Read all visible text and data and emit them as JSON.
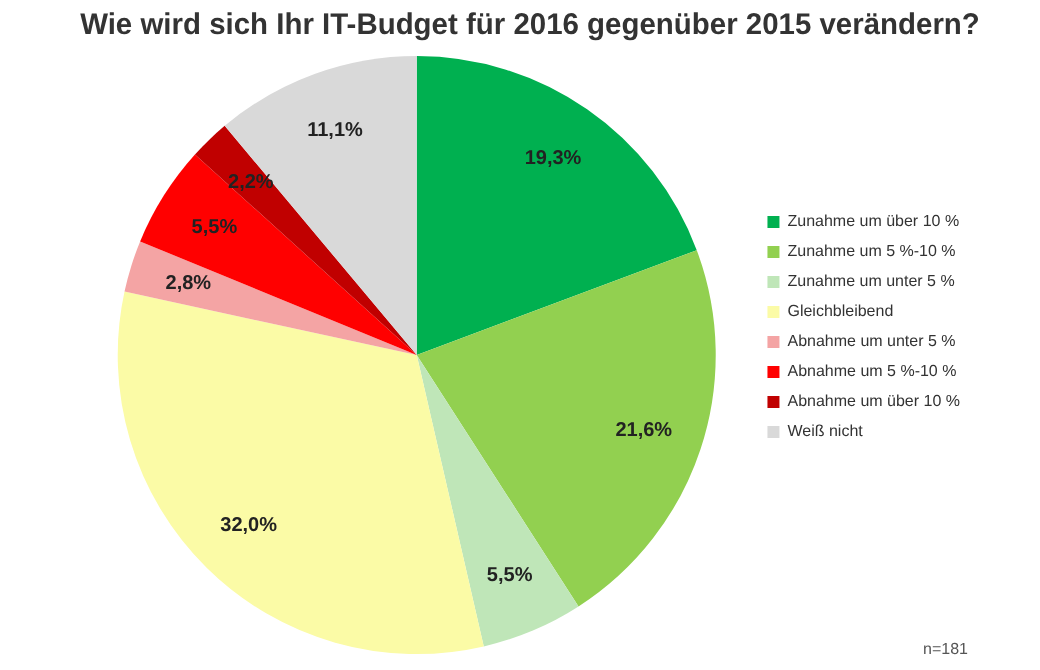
{
  "chart_data": {
    "type": "pie",
    "title": "Wie wird sich Ihr IT-Budget für 2016 gegenüber 2015 verändern?",
    "categories": [
      "Zunahme um über 10 %",
      "Zunahme um 5 %-10 %",
      "Zunahme um unter 5 %",
      "Gleichbleibend",
      "Abnahme um unter 5 %",
      "Abnahme um 5 %-10 %",
      "Abnahme um über 10 %",
      "Weiß nicht"
    ],
    "values": [
      19.3,
      21.6,
      5.5,
      32.0,
      2.8,
      5.5,
      2.2,
      11.1
    ],
    "value_labels": [
      "19,3%",
      "21,6%",
      "5,5%",
      "32,0%",
      "2,8%",
      "5,5%",
      "2,2%",
      "11,1%"
    ],
    "colors": [
      "#00b050",
      "#92d050",
      "#bfe6b8",
      "#fbfba6",
      "#f4a4a4",
      "#ff0000",
      "#c00000",
      "#d9d9d9"
    ],
    "legend": "right",
    "annotations": [
      "n=181"
    ]
  }
}
